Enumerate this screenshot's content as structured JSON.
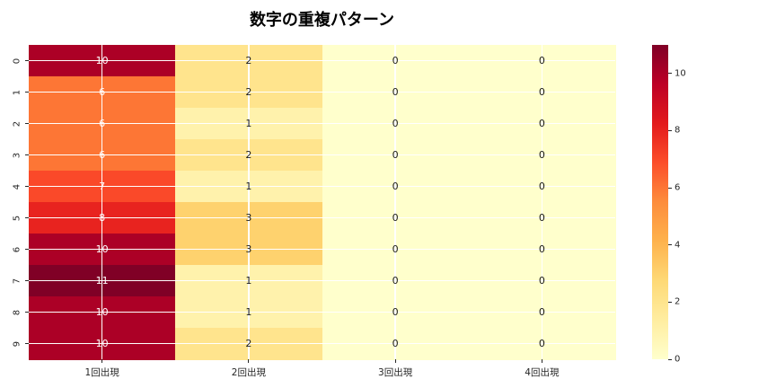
{
  "title": "数字の重複パターン",
  "colors": {
    "background": "#ffffff",
    "grid_line": "#ffffff",
    "tick_color": "#262626",
    "annot_dark": "#1a1a1a",
    "annot_light": "#ffffff"
  },
  "chart_data": {
    "type": "heatmap",
    "title": "数字の重複パターン",
    "rows": [
      "0",
      "1",
      "2",
      "3",
      "4",
      "5",
      "6",
      "7",
      "8",
      "9"
    ],
    "columns": [
      "1回出現",
      "2回出現",
      "3回出現",
      "4回出現"
    ],
    "values": [
      [
        10,
        2,
        0,
        0
      ],
      [
        6,
        2,
        0,
        0
      ],
      [
        6,
        1,
        0,
        0
      ],
      [
        6,
        2,
        0,
        0
      ],
      [
        7,
        1,
        0,
        0
      ],
      [
        8,
        3,
        0,
        0
      ],
      [
        10,
        3,
        0,
        0
      ],
      [
        11,
        1,
        0,
        0
      ],
      [
        10,
        1,
        0,
        0
      ],
      [
        10,
        2,
        0,
        0
      ]
    ],
    "vmin": 0,
    "vmax": 11,
    "colormap": "YlOrRd",
    "colormap_stops": [
      "#ffffcc",
      "#ffeda0",
      "#fed976",
      "#feb24c",
      "#fd8d3c",
      "#fc4e2a",
      "#e31a1c",
      "#bd0026",
      "#800026"
    ],
    "colorbar_ticks": [
      0,
      2,
      4,
      6,
      8,
      10
    ],
    "grid": true,
    "annotations": true,
    "colorbar_position": "right"
  }
}
